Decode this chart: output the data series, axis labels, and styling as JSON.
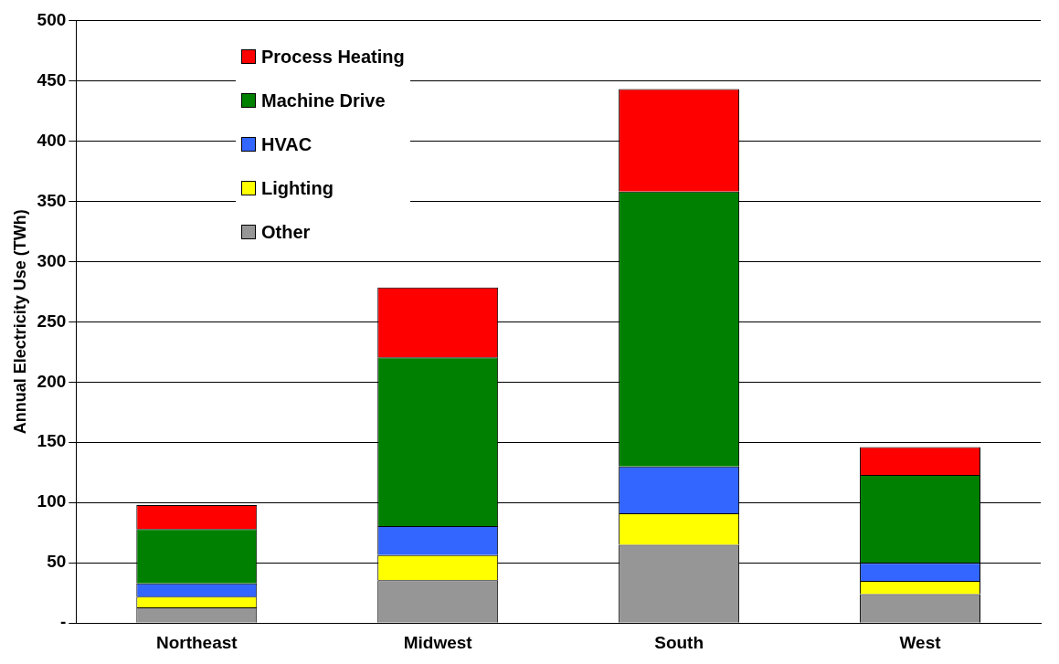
{
  "chart_data": {
    "type": "bar",
    "ylabel": "Annual Electricity Use (TWh)",
    "categories": [
      "Northeast",
      "Midwest",
      "South",
      "West"
    ],
    "stacked": true,
    "series": [
      {
        "name": "Other",
        "color": "#969696",
        "values": [
          13,
          35.5,
          65,
          24
        ]
      },
      {
        "name": "Lighting",
        "color": "#ffff00",
        "values": [
          9,
          21,
          26,
          11
        ]
      },
      {
        "name": "HVAC",
        "color": "#3366ff",
        "values": [
          11,
          24,
          39,
          15
        ]
      },
      {
        "name": "Machine Drive",
        "color": "#008000",
        "values": [
          45,
          140,
          228,
          73
        ]
      },
      {
        "name": "Process Heating",
        "color": "#ff0000",
        "values": [
          20,
          58,
          85,
          23
        ]
      }
    ],
    "ylim": [
      0,
      500
    ],
    "yticks": [
      {
        "value": 0,
        "label": "-"
      },
      50,
      100,
      150,
      200,
      250,
      300,
      350,
      400,
      450,
      500
    ],
    "grid": "y",
    "legend": "top left"
  }
}
